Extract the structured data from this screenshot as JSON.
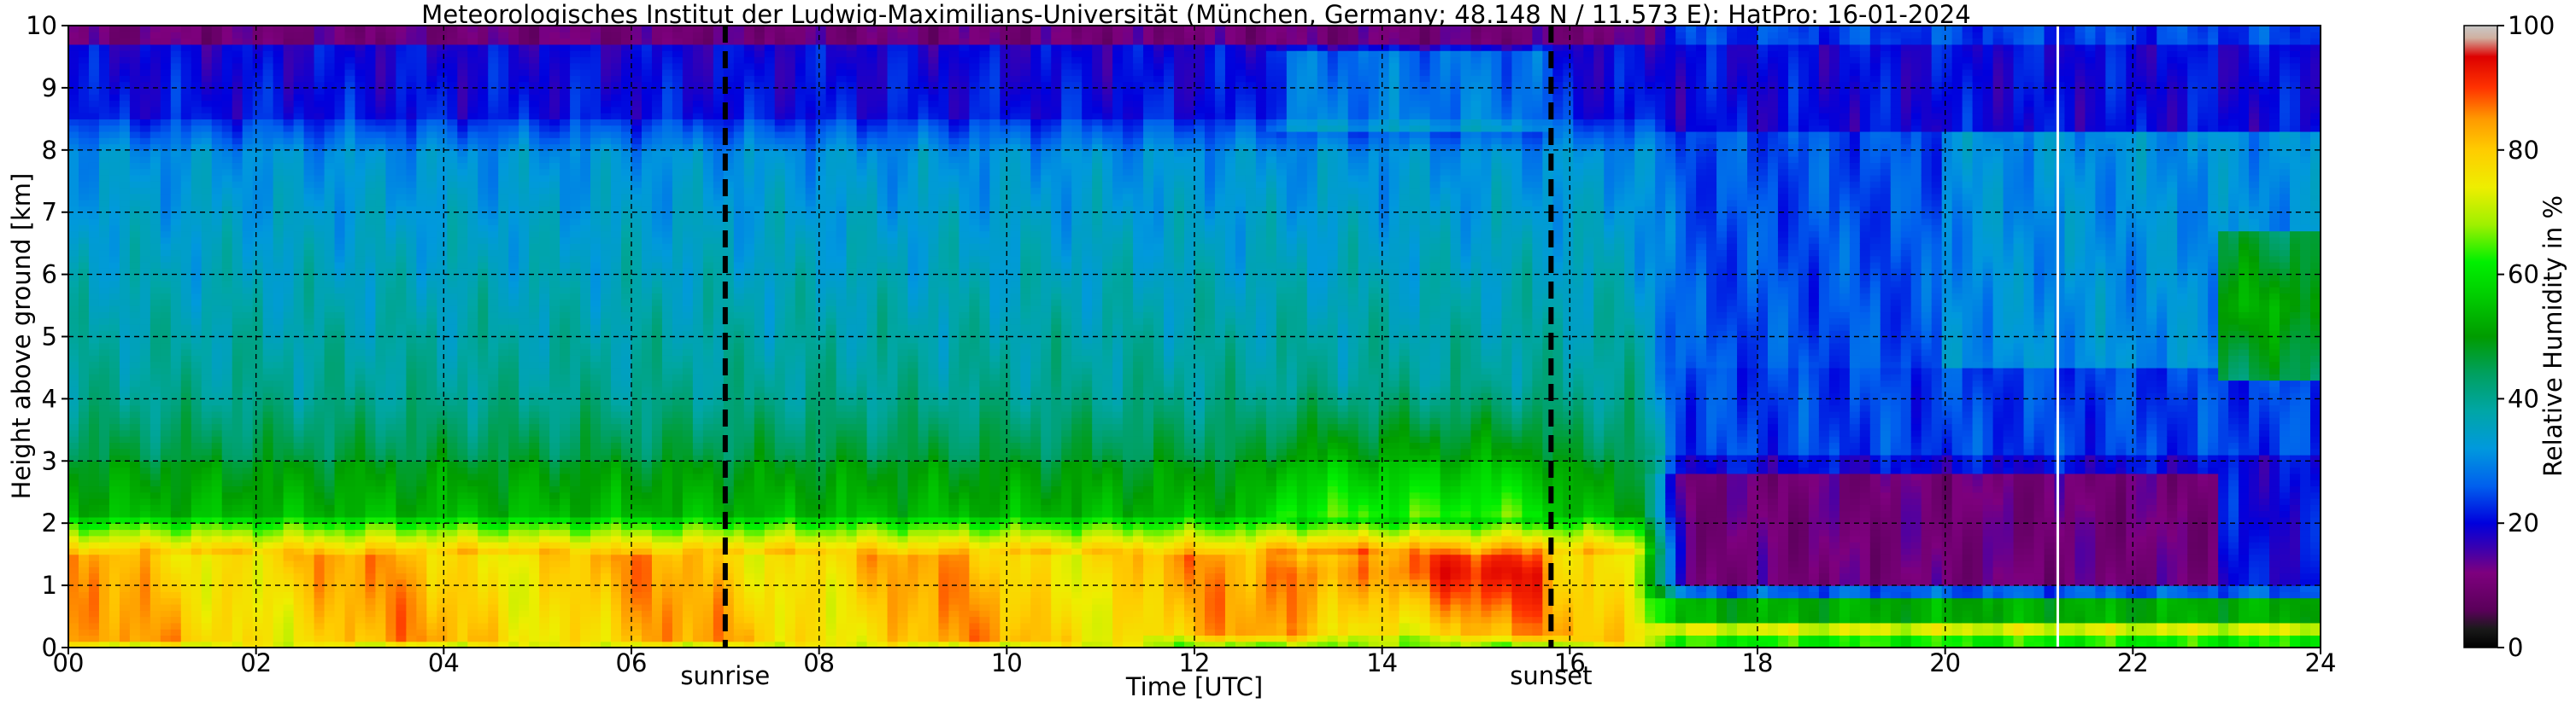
{
  "chart_data": {
    "type": "heatmap",
    "title": "Meteorologisches Institut der Ludwig-Maximilians-Universität (München, Germany; 48.148 N / 11.573 E):    HatPro: 16-01-2024",
    "xlabel": "Time [UTC]",
    "ylabel": "Height above ground [km]",
    "xlim": [
      0,
      24
    ],
    "ylim": [
      0,
      10
    ],
    "x_ticks": [
      "00",
      "02",
      "04",
      "06",
      "08",
      "10",
      "12",
      "14",
      "16",
      "18",
      "20",
      "22",
      "24"
    ],
    "y_ticks": [
      "0",
      "1",
      "2",
      "3",
      "4",
      "5",
      "6",
      "7",
      "8",
      "9",
      "10"
    ],
    "grid": true,
    "colorbar": {
      "label": "Relative Humidity in %",
      "ticks": [
        "0",
        "20",
        "40",
        "60",
        "80",
        "100"
      ],
      "range": [
        0,
        100
      ],
      "stops": [
        {
          "v": 0,
          "c": "#000000"
        },
        {
          "v": 3,
          "c": "#1a1a1a"
        },
        {
          "v": 6,
          "c": "#5a005a"
        },
        {
          "v": 12,
          "c": "#7e007e"
        },
        {
          "v": 16,
          "c": "#3a00b0"
        },
        {
          "v": 20,
          "c": "#0000dd"
        },
        {
          "v": 26,
          "c": "#0060ee"
        },
        {
          "v": 32,
          "c": "#0099dd"
        },
        {
          "v": 38,
          "c": "#00a6a6"
        },
        {
          "v": 44,
          "c": "#00a060"
        },
        {
          "v": 50,
          "c": "#009c00"
        },
        {
          "v": 57,
          "c": "#00d000"
        },
        {
          "v": 62,
          "c": "#00f000"
        },
        {
          "v": 68,
          "c": "#9ff000"
        },
        {
          "v": 74,
          "c": "#eeee00"
        },
        {
          "v": 80,
          "c": "#ffcc00"
        },
        {
          "v": 85,
          "c": "#ff9900"
        },
        {
          "v": 90,
          "c": "#ff3300"
        },
        {
          "v": 95,
          "c": "#dd0000"
        },
        {
          "v": 98,
          "c": "#d0b0a0"
        },
        {
          "v": 100,
          "c": "#c8c8c8"
        }
      ]
    },
    "vertical_markers": [
      {
        "x": 7.0,
        "label": "sunrise",
        "style": "dashed-black"
      },
      {
        "x": 15.8,
        "label": "sunset",
        "style": "dashed-black"
      },
      {
        "x": 21.2,
        "label": "",
        "style": "solid-white"
      }
    ],
    "humidity_layers": [
      {
        "time_range": [
          0,
          12.5
        ],
        "height_km": [
          0,
          1.6
        ],
        "rh_range": [
          70,
          88
        ],
        "note": ""
      },
      {
        "time_range": [
          0,
          12.5
        ],
        "height_km": [
          1.6,
          3.0
        ],
        "rh_range": [
          50,
          65
        ]
      },
      {
        "time_range": [
          0,
          17
        ],
        "height_km": [
          3.0,
          8.0
        ],
        "rh_range": [
          30,
          45
        ]
      },
      {
        "time_range": [
          0,
          24
        ],
        "height_km": [
          8.0,
          9.7
        ],
        "rh_range": [
          18,
          25
        ]
      },
      {
        "time_range": [
          0,
          24
        ],
        "height_km": [
          9.7,
          10
        ],
        "rh_range": [
          8,
          14
        ]
      },
      {
        "time_range": [
          13,
          15.8
        ],
        "height_km": [
          0.5,
          2.0
        ],
        "rh_range": [
          85,
          95
        ]
      },
      {
        "time_range": [
          17.2,
          22.9
        ],
        "height_km": [
          0.9,
          2.9
        ],
        "rh_range": [
          8,
          14
        ]
      },
      {
        "time_range": [
          22.9,
          24
        ],
        "height_km": [
          4.5,
          6.5
        ],
        "rh_range": [
          48,
          55
        ]
      }
    ]
  }
}
